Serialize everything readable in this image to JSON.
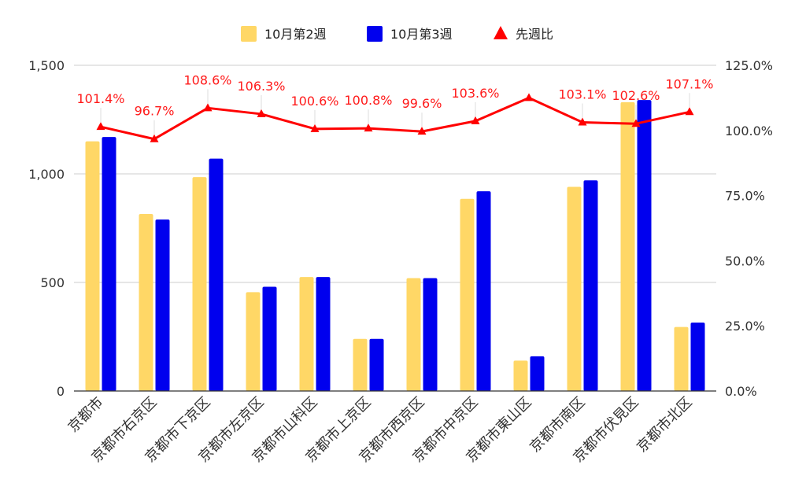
{
  "chart_data": {
    "type": "bar",
    "categories": [
      "京都市",
      "京都市右京区",
      "京都市下京区",
      "京都市左京区",
      "京都市山科区",
      "京都市上京区",
      "京都市西京区",
      "京都市中京区",
      "京都市東山区",
      "京都市南区",
      "京都市伏見区",
      "京都市北区"
    ],
    "series": [
      {
        "name": "10月第2週",
        "values": [
          1150,
          815,
          985,
          455,
          525,
          240,
          520,
          885,
          140,
          940,
          1330,
          295
        ]
      },
      {
        "name": "10月第3週",
        "values": [
          1170,
          790,
          1070,
          480,
          525,
          240,
          520,
          920,
          160,
          970,
          1340,
          315
        ]
      }
    ],
    "ratio": {
      "name": "先週比",
      "values": [
        101.4,
        96.7,
        108.6,
        106.3,
        100.6,
        100.8,
        99.6,
        103.6,
        112.5,
        103.1,
        102.6,
        107.1
      ],
      "labels": [
        "101.4%",
        "96.7%",
        "108.6%",
        "106.3%",
        "100.6%",
        "100.8%",
        "99.6%",
        "103.6%",
        "",
        "103.1%",
        "102.6%",
        "107.1%"
      ]
    },
    "y_left": {
      "lim": [
        0,
        1500
      ],
      "ticks": [
        0,
        500,
        1000,
        1500
      ],
      "tick_labels": [
        "0",
        "500",
        "1,000",
        "1,500"
      ]
    },
    "y_right": {
      "lim": [
        0,
        125
      ],
      "ticks": [
        0,
        25,
        50,
        75,
        100,
        125
      ],
      "tick_labels": [
        "0.0%",
        "25.0%",
        "50.0%",
        "75.0%",
        "100.0%",
        "125.0%"
      ]
    },
    "legend": {
      "position": "top"
    },
    "colors": {
      "series1": "#ffd766",
      "series2": "#0000ee",
      "ratio": "#ff0000",
      "grid": "#cccccc"
    }
  }
}
